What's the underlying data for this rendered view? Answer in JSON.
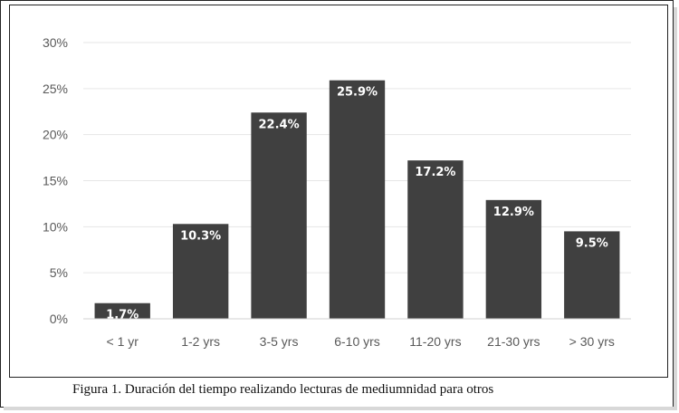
{
  "caption": "Figura 1. Duración del tiempo realizando lecturas de mediumnidad para otros",
  "chart_data": {
    "type": "bar",
    "title": "",
    "xlabel": "",
    "ylabel": "",
    "categories": [
      "< 1 yr",
      "1-2 yrs",
      "3-5 yrs",
      "6-10 yrs",
      "11-20 yrs",
      "21-30 yrs",
      "> 30 yrs"
    ],
    "values": [
      1.7,
      10.3,
      22.4,
      25.9,
      17.2,
      12.9,
      9.5
    ],
    "value_labels": [
      "1.7%",
      "10.3%",
      "22.4%",
      "25.9%",
      "17.2%",
      "12.9%",
      "9.5%"
    ],
    "y_ticks": [
      "0%",
      "5%",
      "10%",
      "15%",
      "20%",
      "25%",
      "30%"
    ],
    "ylim": [
      0,
      30
    ],
    "grid": true,
    "legend": "none",
    "bar_color": "#404040",
    "grid_color": "#e6e6e6"
  }
}
